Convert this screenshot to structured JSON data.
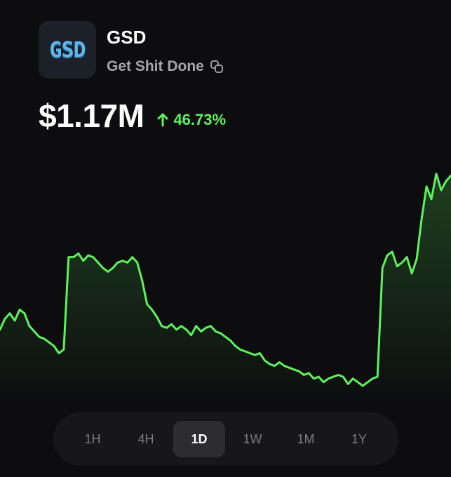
{
  "token": {
    "logo_text": "GSD",
    "symbol": "GSD",
    "name": "Get Shit Done"
  },
  "price": {
    "value": "$1.17M",
    "change": "46.73%",
    "change_direction": "up"
  },
  "colors": {
    "accent_green": "#5df25d",
    "background": "#0d0d0f"
  },
  "range_selector": {
    "options": [
      "1H",
      "4H",
      "1D",
      "1W",
      "1M",
      "1Y"
    ],
    "selected": "1D"
  },
  "chart_data": {
    "type": "line",
    "style": "area",
    "grid": false,
    "axes_visible": false,
    "series": [
      {
        "values": [
          0.31,
          0.37,
          0.4,
          0.36,
          0.42,
          0.4,
          0.33,
          0.3,
          0.27,
          0.26,
          0.24,
          0.22,
          0.18,
          0.2,
          0.71,
          0.71,
          0.73,
          0.69,
          0.72,
          0.71,
          0.68,
          0.65,
          0.63,
          0.65,
          0.68,
          0.69,
          0.68,
          0.71,
          0.68,
          0.58,
          0.45,
          0.42,
          0.38,
          0.33,
          0.32,
          0.34,
          0.31,
          0.33,
          0.31,
          0.28,
          0.33,
          0.3,
          0.32,
          0.33,
          0.3,
          0.29,
          0.27,
          0.25,
          0.22,
          0.2,
          0.19,
          0.18,
          0.17,
          0.18,
          0.14,
          0.12,
          0.11,
          0.13,
          0.11,
          0.1,
          0.09,
          0.08,
          0.06,
          0.07,
          0.04,
          0.05,
          0.02,
          0.04,
          0.05,
          0.06,
          0.05,
          0.01,
          0.04,
          0.02,
          0.0,
          0.02,
          0.04,
          0.05,
          0.65,
          0.72,
          0.74,
          0.66,
          0.68,
          0.71,
          0.62,
          0.7,
          0.92,
          1.1,
          1.03,
          1.17,
          1.08,
          1.13,
          1.16
        ]
      }
    ]
  }
}
